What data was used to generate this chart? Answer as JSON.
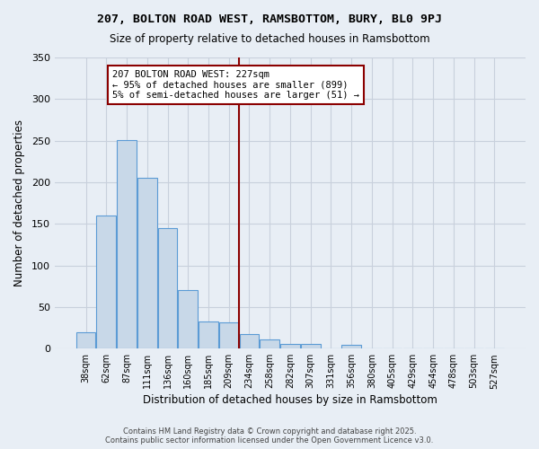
{
  "title": "207, BOLTON ROAD WEST, RAMSBOTTOM, BURY, BL0 9PJ",
  "subtitle": "Size of property relative to detached houses in Ramsbottom",
  "xlabel": "Distribution of detached houses by size in Ramsbottom",
  "ylabel": "Number of detached properties",
  "bar_labels": [
    "38sqm",
    "62sqm",
    "87sqm",
    "111sqm",
    "136sqm",
    "160sqm",
    "185sqm",
    "209sqm",
    "234sqm",
    "258sqm",
    "282sqm",
    "307sqm",
    "331sqm",
    "356sqm",
    "380sqm",
    "405sqm",
    "429sqm",
    "454sqm",
    "478sqm",
    "503sqm",
    "527sqm"
  ],
  "bar_values": [
    20,
    160,
    251,
    205,
    145,
    70,
    33,
    32,
    17,
    11,
    6,
    6,
    0,
    4,
    0,
    0,
    0,
    0,
    0,
    0,
    0
  ],
  "bar_color": "#c8d8e8",
  "bar_edge_color": "#5b9bd5",
  "vline_color": "#8b0000",
  "annotation_text": "207 BOLTON ROAD WEST: 227sqm\n← 95% of detached houses are smaller (899)\n5% of semi-detached houses are larger (51) →",
  "annotation_box_color": "#ffffff",
  "annotation_box_edge": "#8b0000",
  "ylim": [
    0,
    350
  ],
  "yticks": [
    0,
    50,
    100,
    150,
    200,
    250,
    300,
    350
  ],
  "bg_color": "#e8eef5",
  "grid_color": "#c8d0dc",
  "footer_line1": "Contains HM Land Registry data © Crown copyright and database right 2025.",
  "footer_line2": "Contains public sector information licensed under the Open Government Licence v3.0."
}
